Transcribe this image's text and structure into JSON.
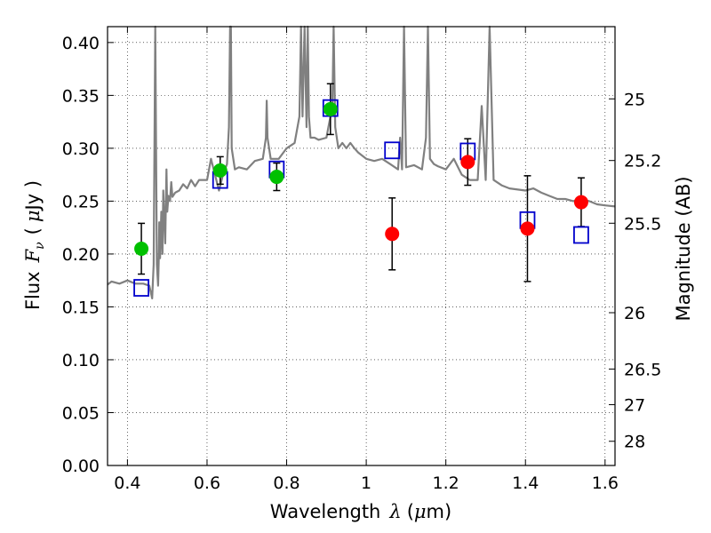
{
  "chart_data": {
    "type": "scatter",
    "xlabel": {
      "prefix": "Wavelength",
      "symbol": "λ",
      "unit_open": "(",
      "unit_mu": "μ",
      "unit_rest": "m)"
    },
    "ylabel": {
      "prefix": "Flux",
      "symbol": "F",
      "subscript": "ν",
      "unit_open": "(",
      "unit_mu": "μ",
      "unit_rest": "Jy )"
    },
    "y2label": "Magnitude (AB)",
    "xlim": [
      0.35,
      1.625
    ],
    "ylim": [
      0.0,
      0.415
    ],
    "xticks": [
      {
        "value": 0.4,
        "label": "0.4"
      },
      {
        "value": 0.6,
        "label": "0.6"
      },
      {
        "value": 0.8,
        "label": "0.8"
      },
      {
        "value": 1.0,
        "label": "1"
      },
      {
        "value": 1.2,
        "label": "1.2"
      },
      {
        "value": 1.4,
        "label": "1.4"
      },
      {
        "value": 1.6,
        "label": "1.6"
      }
    ],
    "yticks": [
      {
        "value": 0.0,
        "label": "0.00"
      },
      {
        "value": 0.05,
        "label": "0.05"
      },
      {
        "value": 0.1,
        "label": "0.10"
      },
      {
        "value": 0.15,
        "label": "0.15"
      },
      {
        "value": 0.2,
        "label": "0.20"
      },
      {
        "value": 0.25,
        "label": "0.25"
      },
      {
        "value": 0.3,
        "label": "0.30"
      },
      {
        "value": 0.35,
        "label": "0.35"
      },
      {
        "value": 0.4,
        "label": "0.40"
      }
    ],
    "magnitude_ticks": [
      {
        "value": 0.3467,
        "label": "25"
      },
      {
        "value": 0.2884,
        "label": "25.2"
      },
      {
        "value": 0.2291,
        "label": "25.5"
      },
      {
        "value": 0.1445,
        "label": "26"
      },
      {
        "value": 0.0912,
        "label": "26.5"
      },
      {
        "value": 0.0575,
        "label": "27"
      },
      {
        "value": 0.0229,
        "label": "28"
      }
    ],
    "grid": true,
    "grid_style": "dotted",
    "colors": {
      "model": "#808080",
      "optical": "#00c000",
      "nir": "#ff0000",
      "model_flux": "#0000cc",
      "errorbar": "#000000"
    },
    "model_spectrum": {
      "name": "",
      "x": [
        0.35,
        0.36,
        0.38,
        0.4,
        0.42,
        0.44,
        0.455,
        0.462,
        0.466,
        0.47,
        0.474,
        0.477,
        0.479,
        0.48,
        0.482,
        0.485,
        0.488,
        0.49,
        0.495,
        0.498,
        0.5,
        0.503,
        0.507,
        0.51,
        0.513,
        0.52,
        0.53,
        0.54,
        0.55,
        0.56,
        0.57,
        0.58,
        0.6,
        0.61,
        0.62,
        0.63,
        0.64,
        0.65,
        0.655,
        0.658,
        0.66,
        0.662,
        0.67,
        0.68,
        0.7,
        0.72,
        0.74,
        0.748,
        0.75,
        0.752,
        0.76,
        0.78,
        0.8,
        0.82,
        0.832,
        0.836,
        0.84,
        0.845,
        0.85,
        0.853,
        0.856,
        0.86,
        0.87,
        0.88,
        0.9,
        0.915,
        0.918,
        0.922,
        0.93,
        0.94,
        0.95,
        0.96,
        0.97,
        0.98,
        1.0,
        1.02,
        1.04,
        1.06,
        1.08,
        1.085,
        1.09,
        1.095,
        1.1,
        1.12,
        1.14,
        1.15,
        1.155,
        1.16,
        1.17,
        1.18,
        1.2,
        1.22,
        1.24,
        1.26,
        1.28,
        1.29,
        1.3,
        1.31,
        1.32,
        1.34,
        1.36,
        1.4,
        1.42,
        1.44,
        1.46,
        1.48,
        1.5,
        1.52,
        1.54,
        1.56,
        1.58,
        1.6,
        1.625
      ],
      "y": [
        0.171,
        0.174,
        0.172,
        0.175,
        0.172,
        0.172,
        0.17,
        0.158,
        0.19,
        0.42,
        0.19,
        0.17,
        0.2,
        0.23,
        0.196,
        0.24,
        0.2,
        0.26,
        0.21,
        0.28,
        0.24,
        0.255,
        0.25,
        0.268,
        0.254,
        0.258,
        0.26,
        0.266,
        0.262,
        0.27,
        0.264,
        0.27,
        0.27,
        0.29,
        0.275,
        0.26,
        0.275,
        0.285,
        0.32,
        0.42,
        0.42,
        0.3,
        0.28,
        0.282,
        0.28,
        0.288,
        0.29,
        0.31,
        0.345,
        0.31,
        0.29,
        0.29,
        0.3,
        0.305,
        0.33,
        0.42,
        0.33,
        0.42,
        0.32,
        0.42,
        0.33,
        0.31,
        0.31,
        0.308,
        0.31,
        0.34,
        0.42,
        0.32,
        0.3,
        0.305,
        0.3,
        0.305,
        0.3,
        0.296,
        0.29,
        0.288,
        0.29,
        0.285,
        0.28,
        0.31,
        0.28,
        0.42,
        0.282,
        0.284,
        0.28,
        0.31,
        0.42,
        0.29,
        0.285,
        0.283,
        0.28,
        0.29,
        0.275,
        0.27,
        0.27,
        0.34,
        0.27,
        0.42,
        0.27,
        0.265,
        0.262,
        0.26,
        0.262,
        0.258,
        0.255,
        0.252,
        0.252,
        0.25,
        0.252,
        0.25,
        0.247,
        0.246,
        0.245
      ]
    },
    "observed_optical": [
      {
        "x": 0.435,
        "y": 0.205,
        "err": 0.024
      },
      {
        "x": 0.633,
        "y": 0.279,
        "err": 0.013
      },
      {
        "x": 0.775,
        "y": 0.273,
        "err": 0.013
      },
      {
        "x": 0.91,
        "y": 0.337,
        "err": 0.024
      }
    ],
    "observed_nir": [
      {
        "x": 1.065,
        "y": 0.219,
        "err": 0.034
      },
      {
        "x": 1.255,
        "y": 0.287,
        "err": 0.022
      },
      {
        "x": 1.405,
        "y": 0.224,
        "err": 0.05
      },
      {
        "x": 1.54,
        "y": 0.249,
        "err": 0.023
      }
    ],
    "model_band_fluxes": [
      {
        "x": 0.435,
        "y": 0.168
      },
      {
        "x": 0.633,
        "y": 0.27
      },
      {
        "x": 0.775,
        "y": 0.28
      },
      {
        "x": 0.91,
        "y": 0.338
      },
      {
        "x": 1.065,
        "y": 0.298
      },
      {
        "x": 1.255,
        "y": 0.297
      },
      {
        "x": 1.405,
        "y": 0.232
      },
      {
        "x": 1.54,
        "y": 0.218
      }
    ]
  }
}
